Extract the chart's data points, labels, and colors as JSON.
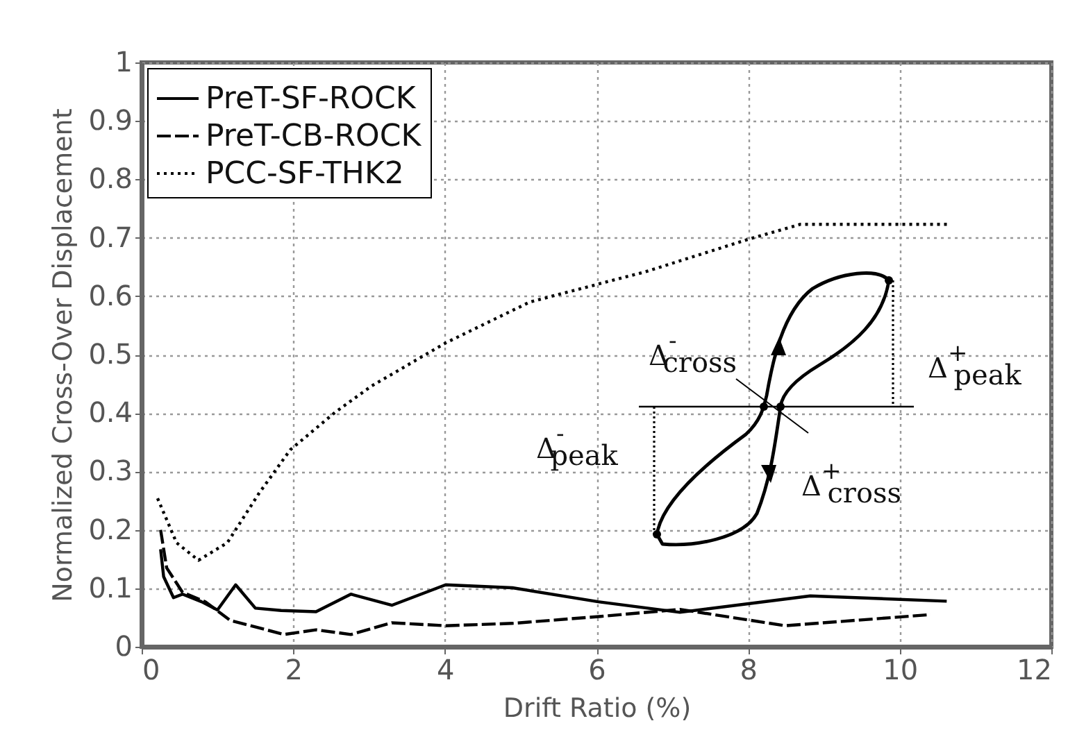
{
  "chart_data": {
    "type": "line",
    "xlabel": "Drift Ratio (%)",
    "ylabel": "Normalized Cross-Over Displacement",
    "xlim": [
      0,
      12
    ],
    "xticks": [
      0,
      2,
      4,
      6,
      8,
      10,
      12
    ],
    "ylim": [
      0,
      1
    ],
    "yticks": [
      0,
      0.1,
      0.2,
      0.3,
      0.4,
      0.5,
      0.6,
      0.7,
      0.8,
      0.9,
      1
    ],
    "grid": true,
    "legend": "top left",
    "series": [
      {
        "name": "PreT-SF-ROCK",
        "color": "#000000",
        "line_style": "solid",
        "x": [
          0.25,
          0.29,
          0.42,
          0.54,
          0.79,
          1.0,
          1.24,
          1.5,
          1.84,
          2.3,
          2.76,
          3.3,
          4.01,
          4.89,
          6.02,
          7.1,
          8.82,
          10.62
        ],
        "values": [
          0.167,
          0.12,
          0.084,
          0.09,
          0.077,
          0.063,
          0.106,
          0.066,
          0.062,
          0.06,
          0.09,
          0.071,
          0.106,
          0.101,
          0.077,
          0.059,
          0.087,
          0.078
        ]
      },
      {
        "name": "PreT-CB-ROCK",
        "color": "#000000",
        "line_style": "dashed",
        "x": [
          0.25,
          0.33,
          0.54,
          0.84,
          1.17,
          1.88,
          2.3,
          2.76,
          3.3,
          4.01,
          4.89,
          6.06,
          7.1,
          8.49,
          10.41
        ],
        "values": [
          0.2,
          0.135,
          0.093,
          0.077,
          0.045,
          0.021,
          0.029,
          0.021,
          0.041,
          0.036,
          0.04,
          0.052,
          0.064,
          0.036,
          0.055
        ]
      },
      {
        "name": "PCC-SF-THK2",
        "color": "#000000",
        "line_style": "dotted",
        "x": [
          0.21,
          0.46,
          0.75,
          1.13,
          1.55,
          1.96,
          2.55,
          3.03,
          4.01,
          5.12,
          6.65,
          8.02,
          8.69,
          10.63
        ],
        "values": [
          0.254,
          0.178,
          0.148,
          0.178,
          0.263,
          0.337,
          0.401,
          0.446,
          0.52,
          0.59,
          0.642,
          0.698,
          0.723,
          0.723
        ]
      }
    ],
    "annotations": [
      "Δ$^{-}$$_{cross}$",
      "Δ$^{+}$$_{peak}$",
      "Δ$^{-}$$_{peak}$",
      "Δ$^{+}$$_{cross}$"
    ]
  }
}
